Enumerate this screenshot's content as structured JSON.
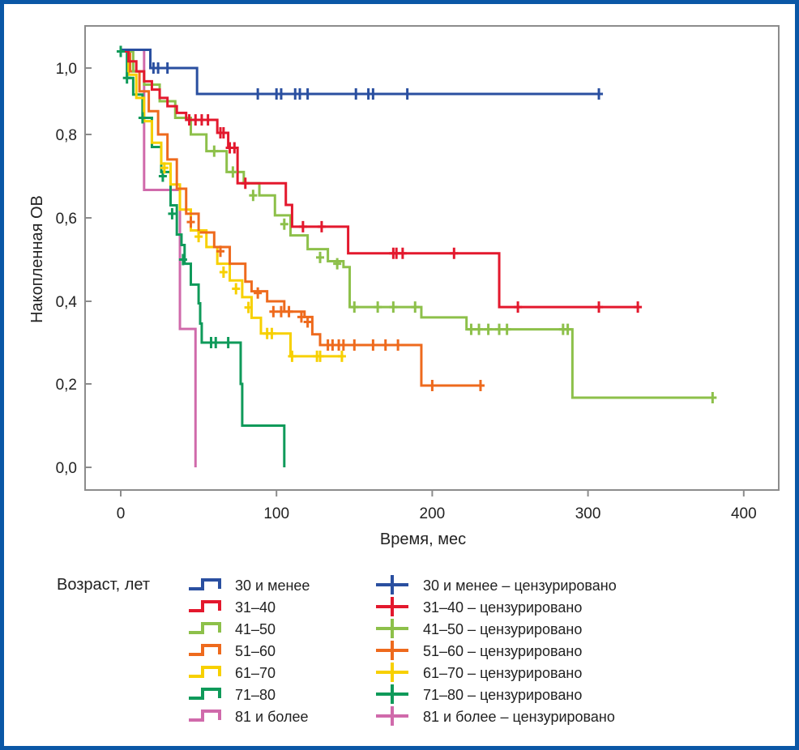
{
  "chart_data": {
    "type": "line",
    "subtype": "kaplan-meier",
    "title": "",
    "xlabel": "Время, мес",
    "ylabel": "Накопленная ОВ",
    "xlim": [
      -25,
      420
    ],
    "ylim": [
      -0.05,
      1.08
    ],
    "x_ticks": [
      0,
      100,
      200,
      300,
      400
    ],
    "x_tick_labels": [
      "0",
      "100",
      "200",
      "300",
      "400"
    ],
    "y_ticks": [
      0.0,
      0.2,
      0.4,
      0.6,
      0.8,
      1.0
    ],
    "y_tick_labels": [
      "0,0",
      "0,2",
      "0,4",
      "0,6",
      "0,8",
      "1,0"
    ],
    "grid": false,
    "legend_title": "Возраст, лет",
    "legend_position": "bottom",
    "series": [
      {
        "name": "30 и менее",
        "censored_label": "30 и менее – цензурировано",
        "color": "#2a4fa0",
        "steps": [
          [
            0,
            1.055
          ],
          [
            19,
            1.0
          ],
          [
            49,
            0.922
          ],
          [
            308,
            0.922
          ]
        ],
        "censored": [
          [
            21,
            1.0
          ],
          [
            24,
            1.0
          ],
          [
            30,
            1.0
          ],
          [
            88,
            0.922
          ],
          [
            100,
            0.922
          ],
          [
            103,
            0.922
          ],
          [
            112,
            0.922
          ],
          [
            115,
            0.922
          ],
          [
            120,
            0.922
          ],
          [
            151,
            0.922
          ],
          [
            159,
            0.922
          ],
          [
            162,
            0.922
          ],
          [
            184,
            0.922
          ],
          [
            307,
            0.922
          ]
        ]
      },
      {
        "name": "31–40",
        "censored_label": "31–40 – цензурировано",
        "color": "#e3182d",
        "steps": [
          [
            0,
            1.05
          ],
          [
            5,
            1.02
          ],
          [
            10,
            0.99
          ],
          [
            15,
            0.96
          ],
          [
            20,
            0.935
          ],
          [
            25,
            0.91
          ],
          [
            30,
            0.885
          ],
          [
            36,
            0.865
          ],
          [
            42,
            0.844
          ],
          [
            62,
            0.805
          ],
          [
            69,
            0.768
          ],
          [
            75,
            0.683
          ],
          [
            106,
            0.631
          ],
          [
            110,
            0.579
          ],
          [
            146,
            0.515
          ],
          [
            243,
            0.386
          ],
          [
            333,
            0.386
          ]
        ],
        "censored": [
          [
            44,
            0.844
          ],
          [
            48,
            0.844
          ],
          [
            52,
            0.844
          ],
          [
            56,
            0.844
          ],
          [
            64,
            0.805
          ],
          [
            66,
            0.805
          ],
          [
            70,
            0.768
          ],
          [
            73,
            0.768
          ],
          [
            80,
            0.683
          ],
          [
            117,
            0.579
          ],
          [
            129,
            0.579
          ],
          [
            175,
            0.515
          ],
          [
            177,
            0.515
          ],
          [
            181,
            0.515
          ],
          [
            214,
            0.515
          ],
          [
            255,
            0.386
          ],
          [
            307,
            0.386
          ],
          [
            332,
            0.386
          ]
        ]
      },
      {
        "name": "41–50",
        "censored_label": "41–50 – цензурировано",
        "color": "#8dc04a",
        "steps": [
          [
            0,
            1.05
          ],
          [
            8,
            0.99
          ],
          [
            15,
            0.95
          ],
          [
            25,
            0.9
          ],
          [
            35,
            0.85
          ],
          [
            45,
            0.8
          ],
          [
            55,
            0.76
          ],
          [
            68,
            0.71
          ],
          [
            79,
            0.683
          ],
          [
            89,
            0.654
          ],
          [
            99,
            0.606
          ],
          [
            109,
            0.558
          ],
          [
            120,
            0.525
          ],
          [
            133,
            0.496
          ],
          [
            143,
            0.482
          ],
          [
            147,
            0.386
          ],
          [
            191,
            0.386
          ],
          [
            193,
            0.361
          ],
          [
            221,
            0.361
          ],
          [
            222,
            0.332
          ],
          [
            288,
            0.332
          ],
          [
            290,
            0.167
          ],
          [
            381,
            0.167
          ]
        ],
        "censored": [
          [
            60,
            0.76
          ],
          [
            72,
            0.71
          ],
          [
            85,
            0.654
          ],
          [
            105,
            0.585
          ],
          [
            128,
            0.505
          ],
          [
            139,
            0.49
          ],
          [
            150,
            0.386
          ],
          [
            165,
            0.386
          ],
          [
            175,
            0.386
          ],
          [
            189,
            0.386
          ],
          [
            225,
            0.332
          ],
          [
            230,
            0.332
          ],
          [
            236,
            0.332
          ],
          [
            243,
            0.332
          ],
          [
            248,
            0.332
          ],
          [
            284,
            0.332
          ],
          [
            287,
            0.332
          ],
          [
            380,
            0.167
          ]
        ]
      },
      {
        "name": "51–60",
        "censored_label": "51–60 – цензурировано",
        "color": "#ee6a1d",
        "steps": [
          [
            0,
            1.05
          ],
          [
            6,
            0.99
          ],
          [
            12,
            0.93
          ],
          [
            18,
            0.87
          ],
          [
            24,
            0.8
          ],
          [
            30,
            0.74
          ],
          [
            36,
            0.67
          ],
          [
            42,
            0.61
          ],
          [
            50,
            0.565
          ],
          [
            60,
            0.53
          ],
          [
            70,
            0.49
          ],
          [
            80,
            0.447
          ],
          [
            84,
            0.424
          ],
          [
            94,
            0.4
          ],
          [
            105,
            0.375
          ],
          [
            118,
            0.362
          ],
          [
            123,
            0.32
          ],
          [
            128,
            0.294
          ],
          [
            191,
            0.294
          ],
          [
            193,
            0.196
          ],
          [
            233,
            0.196
          ]
        ],
        "censored": [
          [
            45,
            0.59
          ],
          [
            64,
            0.52
          ],
          [
            88,
            0.42
          ],
          [
            98,
            0.375
          ],
          [
            103,
            0.375
          ],
          [
            108,
            0.375
          ],
          [
            116,
            0.362
          ],
          [
            120,
            0.35
          ],
          [
            133,
            0.294
          ],
          [
            136,
            0.294
          ],
          [
            140,
            0.294
          ],
          [
            143,
            0.294
          ],
          [
            150,
            0.294
          ],
          [
            162,
            0.294
          ],
          [
            170,
            0.294
          ],
          [
            178,
            0.294
          ],
          [
            200,
            0.196
          ],
          [
            231,
            0.196
          ]
        ]
      },
      {
        "name": "61–70",
        "censored_label": "61–70 – цензурировано",
        "color": "#f7d000",
        "steps": [
          [
            0,
            1.05
          ],
          [
            5,
            0.98
          ],
          [
            10,
            0.91
          ],
          [
            15,
            0.84
          ],
          [
            20,
            0.78
          ],
          [
            26,
            0.73
          ],
          [
            32,
            0.68
          ],
          [
            38,
            0.62
          ],
          [
            45,
            0.57
          ],
          [
            55,
            0.53
          ],
          [
            62,
            0.49
          ],
          [
            70,
            0.45
          ],
          [
            78,
            0.41
          ],
          [
            84,
            0.36
          ],
          [
            90,
            0.322
          ],
          [
            107,
            0.322
          ],
          [
            109,
            0.267
          ],
          [
            143,
            0.267
          ]
        ],
        "censored": [
          [
            28,
            0.72
          ],
          [
            50,
            0.555
          ],
          [
            66,
            0.47
          ],
          [
            74,
            0.43
          ],
          [
            82,
            0.385
          ],
          [
            94,
            0.322
          ],
          [
            97,
            0.322
          ],
          [
            110,
            0.267
          ],
          [
            126,
            0.267
          ],
          [
            128,
            0.267
          ],
          [
            142,
            0.267
          ]
        ]
      },
      {
        "name": "71–80",
        "censored_label": "71–80 – цензурировано",
        "color": "#0f9a5a",
        "steps": [
          [
            0,
            1.05
          ],
          [
            4,
            0.97
          ],
          [
            8,
            0.92
          ],
          [
            14,
            0.85
          ],
          [
            20,
            0.77
          ],
          [
            26,
            0.71
          ],
          [
            32,
            0.63
          ],
          [
            36,
            0.56
          ],
          [
            39,
            0.535
          ],
          [
            41,
            0.49
          ],
          [
            45,
            0.44
          ],
          [
            50,
            0.395
          ],
          [
            51,
            0.346
          ],
          [
            52,
            0.3
          ],
          [
            76,
            0.3
          ],
          [
            77,
            0.2
          ],
          [
            78,
            0.1
          ],
          [
            104,
            0.1
          ],
          [
            105,
            0.0
          ]
        ],
        "censored": [
          [
            0,
            1.05
          ],
          [
            4,
            0.97
          ],
          [
            14,
            0.85
          ],
          [
            27,
            0.7
          ],
          [
            33,
            0.61
          ],
          [
            40,
            0.5
          ],
          [
            58,
            0.3
          ],
          [
            61,
            0.3
          ],
          [
            69,
            0.3
          ]
        ]
      },
      {
        "name": "81 и более",
        "censored_label": "81 и более – цензурировано",
        "color": "#d06aab",
        "steps": [
          [
            0,
            1.055
          ],
          [
            15,
            1.055
          ],
          [
            15,
            0.667
          ],
          [
            38,
            0.667
          ],
          [
            38,
            0.333
          ],
          [
            48,
            0.333
          ],
          [
            48,
            0.0
          ]
        ],
        "censored": []
      }
    ]
  }
}
